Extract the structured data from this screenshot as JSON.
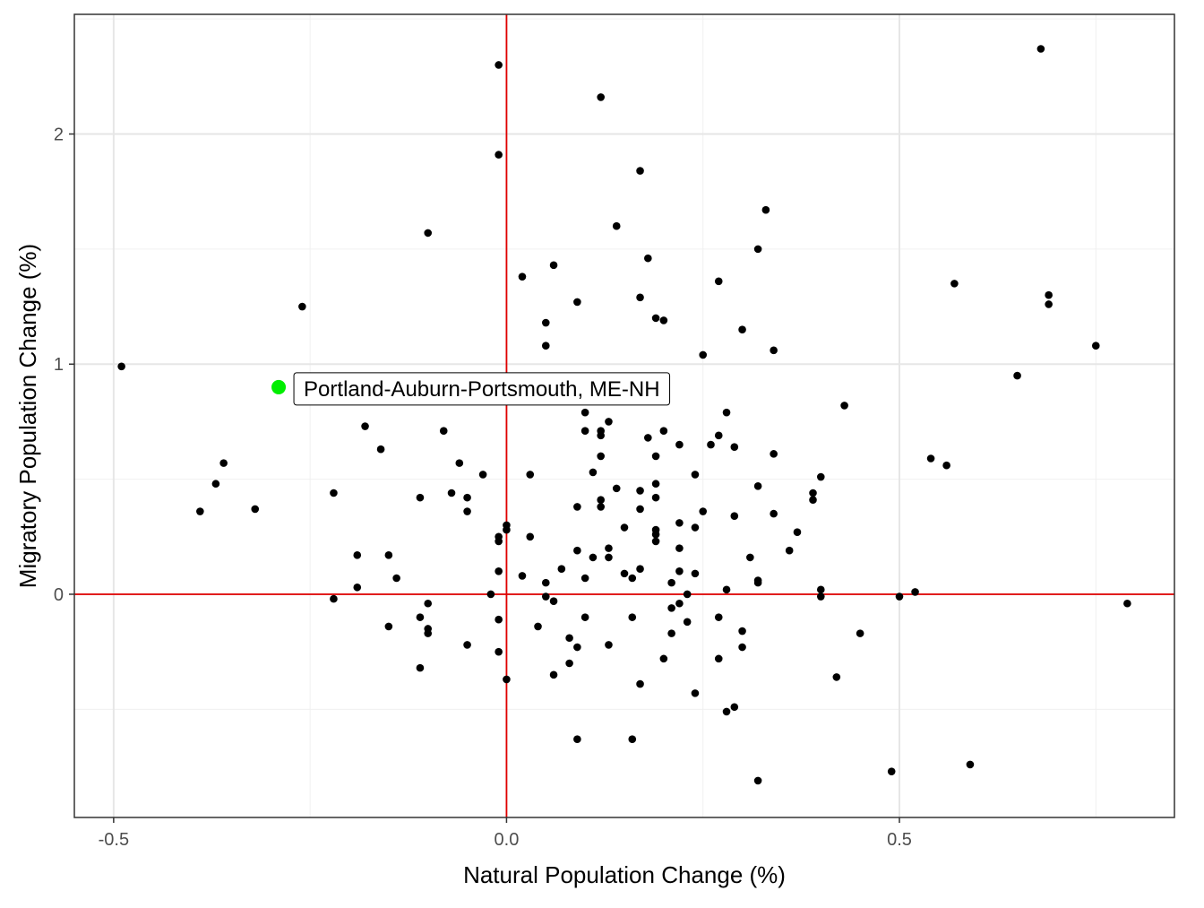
{
  "chart_data": {
    "type": "scatter",
    "title": "",
    "xlabel": "Natural Population Change (%)",
    "ylabel": "Migratory Population Change (%)",
    "xlim": [
      -0.55,
      0.85
    ],
    "ylim": [
      -0.97,
      2.52
    ],
    "x_ticks": [
      -0.5,
      0.0,
      0.5
    ],
    "x_tick_labels": [
      "-0.5",
      "0.0",
      "0.5"
    ],
    "y_ticks": [
      0,
      1,
      2
    ],
    "y_tick_labels": [
      "0",
      "1",
      "2"
    ],
    "grid": true,
    "reference_lines": {
      "x": 0,
      "y": 0,
      "color": "#e00000"
    },
    "point_color": "#000000",
    "highlight_color": "#00ee00",
    "highlight": {
      "x": -0.29,
      "y": 0.9,
      "label": "Portland-Auburn-Portsmouth, ME-NH"
    },
    "points": [
      [
        -0.49,
        0.99
      ],
      [
        -0.39,
        0.36
      ],
      [
        -0.37,
        0.48
      ],
      [
        -0.36,
        0.57
      ],
      [
        -0.32,
        0.37
      ],
      [
        -0.26,
        1.25
      ],
      [
        -0.22,
        0.44
      ],
      [
        -0.22,
        -0.02
      ],
      [
        -0.19,
        0.17
      ],
      [
        -0.19,
        0.03
      ],
      [
        -0.18,
        0.73
      ],
      [
        -0.16,
        0.63
      ],
      [
        -0.15,
        0.17
      ],
      [
        -0.15,
        -0.14
      ],
      [
        -0.14,
        0.07
      ],
      [
        -0.11,
        0.42
      ],
      [
        -0.11,
        -0.1
      ],
      [
        -0.11,
        -0.32
      ],
      [
        -0.1,
        1.57
      ],
      [
        -0.1,
        -0.04
      ],
      [
        -0.1,
        -0.15
      ],
      [
        -0.1,
        -0.17
      ],
      [
        -0.08,
        0.71
      ],
      [
        -0.07,
        0.44
      ],
      [
        -0.06,
        0.57
      ],
      [
        -0.05,
        0.42
      ],
      [
        -0.05,
        0.36
      ],
      [
        -0.05,
        -0.22
      ],
      [
        -0.03,
        0.52
      ],
      [
        -0.02,
        0.0
      ],
      [
        -0.01,
        2.3
      ],
      [
        -0.01,
        1.91
      ],
      [
        -0.01,
        0.25
      ],
      [
        -0.01,
        0.23
      ],
      [
        -0.01,
        0.1
      ],
      [
        -0.01,
        -0.11
      ],
      [
        -0.01,
        -0.25
      ],
      [
        0.0,
        0.3
      ],
      [
        0.0,
        0.28
      ],
      [
        0.0,
        -0.37
      ],
      [
        0.02,
        1.38
      ],
      [
        0.02,
        0.08
      ],
      [
        0.03,
        0.52
      ],
      [
        0.03,
        0.25
      ],
      [
        0.04,
        -0.14
      ],
      [
        0.05,
        1.18
      ],
      [
        0.05,
        1.08
      ],
      [
        0.05,
        0.05
      ],
      [
        0.05,
        -0.01
      ],
      [
        0.06,
        1.43
      ],
      [
        0.06,
        -0.03
      ],
      [
        0.06,
        -0.35
      ],
      [
        0.07,
        0.11
      ],
      [
        0.08,
        -0.19
      ],
      [
        0.08,
        -0.3
      ],
      [
        0.09,
        1.27
      ],
      [
        0.09,
        0.38
      ],
      [
        0.09,
        0.19
      ],
      [
        0.09,
        -0.23
      ],
      [
        0.09,
        -0.63
      ],
      [
        0.1,
        0.79
      ],
      [
        0.1,
        0.71
      ],
      [
        0.1,
        0.07
      ],
      [
        0.1,
        -0.1
      ],
      [
        0.11,
        0.53
      ],
      [
        0.11,
        0.16
      ],
      [
        0.12,
        2.16
      ],
      [
        0.12,
        0.71
      ],
      [
        0.12,
        0.69
      ],
      [
        0.12,
        0.6
      ],
      [
        0.12,
        0.41
      ],
      [
        0.12,
        0.38
      ],
      [
        0.13,
        0.75
      ],
      [
        0.13,
        0.2
      ],
      [
        0.13,
        0.16
      ],
      [
        0.13,
        -0.22
      ],
      [
        0.14,
        1.6
      ],
      [
        0.14,
        0.46
      ],
      [
        0.15,
        0.29
      ],
      [
        0.15,
        0.09
      ],
      [
        0.16,
        0.07
      ],
      [
        0.16,
        -0.1
      ],
      [
        0.16,
        -0.63
      ],
      [
        0.17,
        1.84
      ],
      [
        0.17,
        1.29
      ],
      [
        0.17,
        0.45
      ],
      [
        0.17,
        0.37
      ],
      [
        0.17,
        0.11
      ],
      [
        0.17,
        -0.39
      ],
      [
        0.18,
        1.46
      ],
      [
        0.18,
        0.68
      ],
      [
        0.19,
        1.2
      ],
      [
        0.19,
        0.6
      ],
      [
        0.19,
        0.48
      ],
      [
        0.19,
        0.42
      ],
      [
        0.19,
        0.28
      ],
      [
        0.19,
        0.26
      ],
      [
        0.19,
        0.23
      ],
      [
        0.2,
        1.19
      ],
      [
        0.2,
        0.71
      ],
      [
        0.2,
        -0.28
      ],
      [
        0.21,
        0.05
      ],
      [
        0.21,
        -0.06
      ],
      [
        0.21,
        -0.17
      ],
      [
        0.22,
        0.65
      ],
      [
        0.22,
        0.31
      ],
      [
        0.22,
        0.2
      ],
      [
        0.22,
        0.1
      ],
      [
        0.22,
        -0.04
      ],
      [
        0.23,
        0.0
      ],
      [
        0.23,
        -0.12
      ],
      [
        0.24,
        0.52
      ],
      [
        0.24,
        0.29
      ],
      [
        0.24,
        0.09
      ],
      [
        0.24,
        -0.43
      ],
      [
        0.25,
        1.04
      ],
      [
        0.25,
        0.36
      ],
      [
        0.26,
        0.65
      ],
      [
        0.27,
        1.36
      ],
      [
        0.27,
        0.69
      ],
      [
        0.27,
        -0.1
      ],
      [
        0.27,
        -0.28
      ],
      [
        0.28,
        0.79
      ],
      [
        0.28,
        0.02
      ],
      [
        0.28,
        -0.51
      ],
      [
        0.29,
        0.64
      ],
      [
        0.29,
        0.34
      ],
      [
        0.29,
        -0.49
      ],
      [
        0.3,
        1.15
      ],
      [
        0.3,
        -0.16
      ],
      [
        0.3,
        -0.23
      ],
      [
        0.31,
        0.16
      ],
      [
        0.32,
        1.5
      ],
      [
        0.32,
        0.47
      ],
      [
        0.32,
        0.06
      ],
      [
        0.32,
        0.05
      ],
      [
        0.32,
        -0.81
      ],
      [
        0.33,
        1.67
      ],
      [
        0.34,
        1.06
      ],
      [
        0.34,
        0.61
      ],
      [
        0.34,
        0.35
      ],
      [
        0.36,
        0.19
      ],
      [
        0.37,
        0.27
      ],
      [
        0.39,
        0.44
      ],
      [
        0.39,
        0.41
      ],
      [
        0.4,
        0.51
      ],
      [
        0.4,
        0.02
      ],
      [
        0.4,
        -0.01
      ],
      [
        0.42,
        -0.36
      ],
      [
        0.43,
        0.82
      ],
      [
        0.45,
        -0.17
      ],
      [
        0.49,
        -0.77
      ],
      [
        0.5,
        -0.01
      ],
      [
        0.52,
        0.01
      ],
      [
        0.54,
        0.59
      ],
      [
        0.56,
        0.56
      ],
      [
        0.57,
        1.35
      ],
      [
        0.59,
        -0.74
      ],
      [
        0.65,
        0.95
      ],
      [
        0.68,
        2.37
      ],
      [
        0.69,
        1.3
      ],
      [
        0.69,
        1.26
      ],
      [
        0.75,
        1.08
      ],
      [
        0.79,
        -0.04
      ]
    ]
  }
}
